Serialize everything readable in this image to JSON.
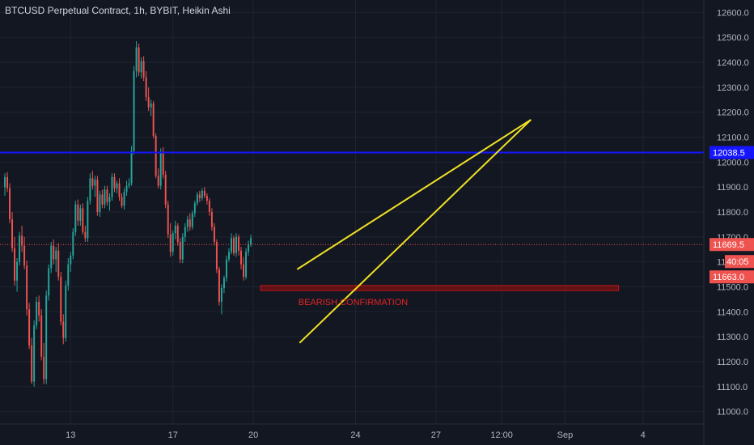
{
  "header": {
    "title": "BTCUSD Perpetual Contract, 1h, BYBIT, Heikin Ashi"
  },
  "colors": {
    "background": "#131722",
    "grid": "#1f2433",
    "up": "#26a69a",
    "down": "#ef5350",
    "level_line": "#1515ff",
    "trendline": "#f0e224",
    "zone_fill": "#6e1212",
    "zone_stroke": "#c2161a",
    "price_line": "#ef5350",
    "axis_text": "#b2b5be"
  },
  "chart_data": {
    "type": "candlestick",
    "y_axis": {
      "min": 10950,
      "max": 12650,
      "ticks": [
        11000,
        11100,
        11200,
        11300,
        11400,
        11500,
        11600,
        11700,
        11800,
        11900,
        12000,
        12100,
        12200,
        12300,
        12400,
        12500,
        12600
      ],
      "tick_labels": [
        "11000.0",
        "11100.0",
        "11200.0",
        "11300.0",
        "11400.0",
        "11500.0",
        "11600.0",
        "11700.0",
        "11800.0",
        "11900.0",
        "12000.0",
        "12100.0",
        "12200.0",
        "12300.0",
        "12400.0",
        "12500.0",
        "12600.0"
      ],
      "side": "right"
    },
    "x_axis": {
      "tick_labels": [
        "13",
        "17",
        "20",
        "24",
        "27",
        "12:00",
        "Sep",
        "4"
      ],
      "tick_bars": [
        25,
        67,
        100,
        142,
        175,
        202,
        228,
        260
      ],
      "bar_range": [
        -4,
        285
      ]
    },
    "grid": true,
    "candles": [
      [
        11900,
        11955,
        11865,
        11940
      ],
      [
        11940,
        11960,
        11880,
        11895
      ],
      [
        11895,
        11915,
        11755,
        11770
      ],
      [
        11770,
        11800,
        11640,
        11655
      ],
      [
        11655,
        11700,
        11505,
        11525
      ],
      [
        11525,
        11615,
        11480,
        11600
      ],
      [
        11600,
        11720,
        11585,
        11705
      ],
      [
        11705,
        11745,
        11640,
        11665
      ],
      [
        11665,
        11700,
        11570,
        11585
      ],
      [
        11585,
        11605,
        11385,
        11410
      ],
      [
        11410,
        11435,
        11250,
        11265
      ],
      [
        11265,
        11295,
        11110,
        11120
      ],
      [
        11120,
        11365,
        11100,
        11345
      ],
      [
        11345,
        11460,
        11330,
        11440
      ],
      [
        11440,
        11465,
        11360,
        11385
      ],
      [
        11385,
        11410,
        11205,
        11220
      ],
      [
        11220,
        11275,
        11110,
        11130
      ],
      [
        11130,
        11485,
        11110,
        11465
      ],
      [
        11465,
        11590,
        11445,
        11575
      ],
      [
        11575,
        11680,
        11555,
        11665
      ],
      [
        11665,
        11690,
        11590,
        11610
      ],
      [
        11610,
        11660,
        11560,
        11645
      ],
      [
        11645,
        11675,
        11525,
        11540
      ],
      [
        11540,
        11560,
        11345,
        11360
      ],
      [
        11360,
        11390,
        11270,
        11295
      ],
      [
        11295,
        11525,
        11280,
        11505
      ],
      [
        11505,
        11615,
        11485,
        11590
      ],
      [
        11590,
        11640,
        11560,
        11625
      ],
      [
        11625,
        11735,
        11610,
        11720
      ],
      [
        11720,
        11845,
        11705,
        11830
      ],
      [
        11830,
        11850,
        11745,
        11765
      ],
      [
        11765,
        11830,
        11745,
        11815
      ],
      [
        11815,
        11835,
        11710,
        11720
      ],
      [
        11720,
        11745,
        11680,
        11695
      ],
      [
        11695,
        11860,
        11680,
        11845
      ],
      [
        11845,
        11955,
        11830,
        11935
      ],
      [
        11935,
        11965,
        11890,
        11905
      ],
      [
        11905,
        11945,
        11860,
        11930
      ],
      [
        11930,
        11945,
        11785,
        11800
      ],
      [
        11800,
        11885,
        11780,
        11870
      ],
      [
        11870,
        11890,
        11815,
        11830
      ],
      [
        11830,
        11905,
        11815,
        11890
      ],
      [
        11890,
        11905,
        11825,
        11840
      ],
      [
        11840,
        11875,
        11805,
        11860
      ],
      [
        11860,
        11955,
        11845,
        11940
      ],
      [
        11940,
        11955,
        11880,
        11895
      ],
      [
        11895,
        11925,
        11875,
        11915
      ],
      [
        11915,
        11935,
        11845,
        11860
      ],
      [
        11860,
        11875,
        11815,
        11825
      ],
      [
        11825,
        11895,
        11810,
        11880
      ],
      [
        11880,
        11925,
        11865,
        11905
      ],
      [
        11905,
        11935,
        11895,
        11915
      ],
      [
        11915,
        12065,
        11905,
        12045
      ],
      [
        12045,
        12385,
        12030,
        12365
      ],
      [
        12365,
        12485,
        12340,
        12460
      ],
      [
        12460,
        12475,
        12345,
        12360
      ],
      [
        12360,
        12420,
        12335,
        12405
      ],
      [
        12405,
        12425,
        12325,
        12340
      ],
      [
        12340,
        12365,
        12245,
        12260
      ],
      [
        12260,
        12300,
        12205,
        12220
      ],
      [
        12220,
        12250,
        12185,
        12235
      ],
      [
        12235,
        12245,
        12095,
        12105
      ],
      [
        12105,
        12115,
        11935,
        11945
      ],
      [
        11945,
        11975,
        11895,
        11905
      ],
      [
        11905,
        12055,
        11890,
        12040
      ],
      [
        12040,
        12060,
        11935,
        11950
      ],
      [
        11950,
        11965,
        11815,
        11830
      ],
      [
        11830,
        11845,
        11695,
        11710
      ],
      [
        11710,
        11755,
        11620,
        11640
      ],
      [
        11640,
        11725,
        11625,
        11715
      ],
      [
        11715,
        11765,
        11690,
        11745
      ],
      [
        11745,
        11755,
        11665,
        11680
      ],
      [
        11680,
        11695,
        11595,
        11610
      ],
      [
        11610,
        11715,
        11595,
        11700
      ],
      [
        11700,
        11755,
        11680,
        11740
      ],
      [
        11740,
        11785,
        11720,
        11770
      ],
      [
        11770,
        11795,
        11725,
        11740
      ],
      [
        11740,
        11805,
        11730,
        11795
      ],
      [
        11795,
        11845,
        11780,
        11835
      ],
      [
        11835,
        11880,
        11825,
        11870
      ],
      [
        11870,
        11885,
        11840,
        11855
      ],
      [
        11855,
        11895,
        11845,
        11885
      ],
      [
        11885,
        11900,
        11855,
        11865
      ],
      [
        11865,
        11875,
        11830,
        11845
      ],
      [
        11845,
        11855,
        11785,
        11800
      ],
      [
        11800,
        11815,
        11725,
        11740
      ],
      [
        11740,
        11755,
        11665,
        11680
      ],
      [
        11680,
        11690,
        11555,
        11570
      ],
      [
        11570,
        11580,
        11425,
        11440
      ],
      [
        11440,
        11510,
        11390,
        11495
      ],
      [
        11495,
        11545,
        11475,
        11535
      ],
      [
        11535,
        11625,
        11520,
        11610
      ],
      [
        11610,
        11655,
        11600,
        11640
      ],
      [
        11640,
        11715,
        11630,
        11695
      ],
      [
        11695,
        11705,
        11625,
        11635
      ],
      [
        11635,
        11715,
        11620,
        11700
      ],
      [
        11700,
        11710,
        11625,
        11645
      ],
      [
        11645,
        11660,
        11570,
        11590
      ],
      [
        11590,
        11620,
        11525,
        11540
      ],
      [
        11540,
        11655,
        11530,
        11640
      ],
      [
        11640,
        11685,
        11625,
        11670
      ],
      [
        11670,
        11710,
        11660,
        11695
      ]
    ],
    "first_bar_index": -2,
    "bar_spacing_note": "one entry per chart bar, starting at bar index first_bar_index",
    "horizontal_levels": [
      {
        "name": "resistance-level",
        "value": 12038.5,
        "label": "12038.5"
      }
    ],
    "current_price": {
      "value": 11669.5,
      "label": "11669.5"
    },
    "countdown": {
      "label": "40:05"
    },
    "second_price": {
      "value": 11663.0,
      "label": "11663.0"
    },
    "trendlines": [
      {
        "name": "upper-wedge-line",
        "start": [
          118,
          11570
        ],
        "end": [
          214,
          12170
        ]
      },
      {
        "name": "lower-wedge-line",
        "start": [
          119,
          11275
        ],
        "end": [
          214,
          12170
        ]
      }
    ],
    "zone": {
      "bar_start": 103,
      "bar_end": 250,
      "y_low": 11485,
      "y_high": 11505
    },
    "annotation": {
      "text": "BEARISH CONFIRMATION",
      "bar": 141,
      "value": 11440
    }
  }
}
